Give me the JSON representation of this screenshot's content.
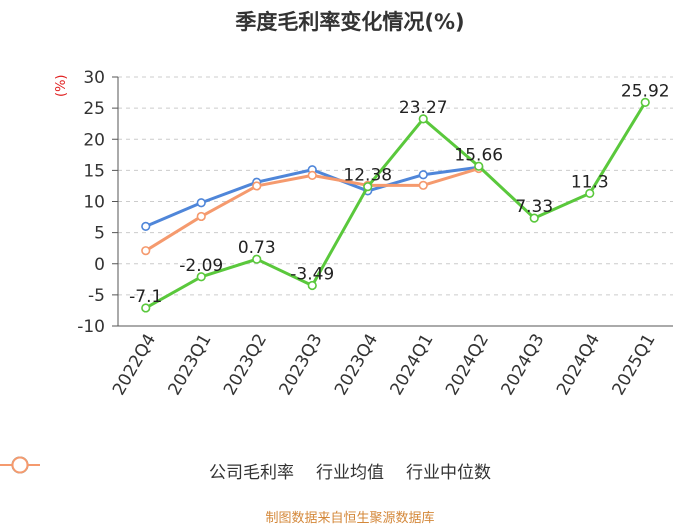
{
  "title": "季度毛利率变化情况(%)",
  "source": "制图数据来自恒生聚源数据库",
  "chart_data": {
    "type": "line",
    "title": "季度毛利率变化情况(%)",
    "ylabel": "(%)",
    "xlabel": "",
    "ylim": [
      -10,
      30
    ],
    "yticks": [
      -10,
      -5,
      0,
      5,
      10,
      15,
      20,
      25,
      30
    ],
    "categories": [
      "2022Q4",
      "2023Q1",
      "2023Q2",
      "2023Q3",
      "2023Q4",
      "2024Q1",
      "2024Q2",
      "2024Q3",
      "2024Q4",
      "2025Q1"
    ],
    "legend_position": "bottom",
    "grid": "horizontal dashed",
    "series": [
      {
        "name": "公司毛利率",
        "color": "#5ac83c",
        "labels_shown": true,
        "values": [
          -7.1,
          -2.09,
          0.73,
          -3.49,
          12.38,
          23.27,
          15.66,
          7.33,
          11.3,
          25.92
        ]
      },
      {
        "name": "行业均值",
        "color": "#4f86d9",
        "labels_shown": false,
        "values": [
          6.0,
          9.8,
          13.1,
          15.1,
          11.7,
          14.3,
          15.5,
          null,
          null,
          null
        ]
      },
      {
        "name": "行业中位数",
        "color": "#f59a6e",
        "labels_shown": false,
        "values": [
          2.1,
          7.6,
          12.5,
          14.2,
          12.6,
          12.6,
          15.3,
          null,
          null,
          null
        ]
      }
    ]
  }
}
